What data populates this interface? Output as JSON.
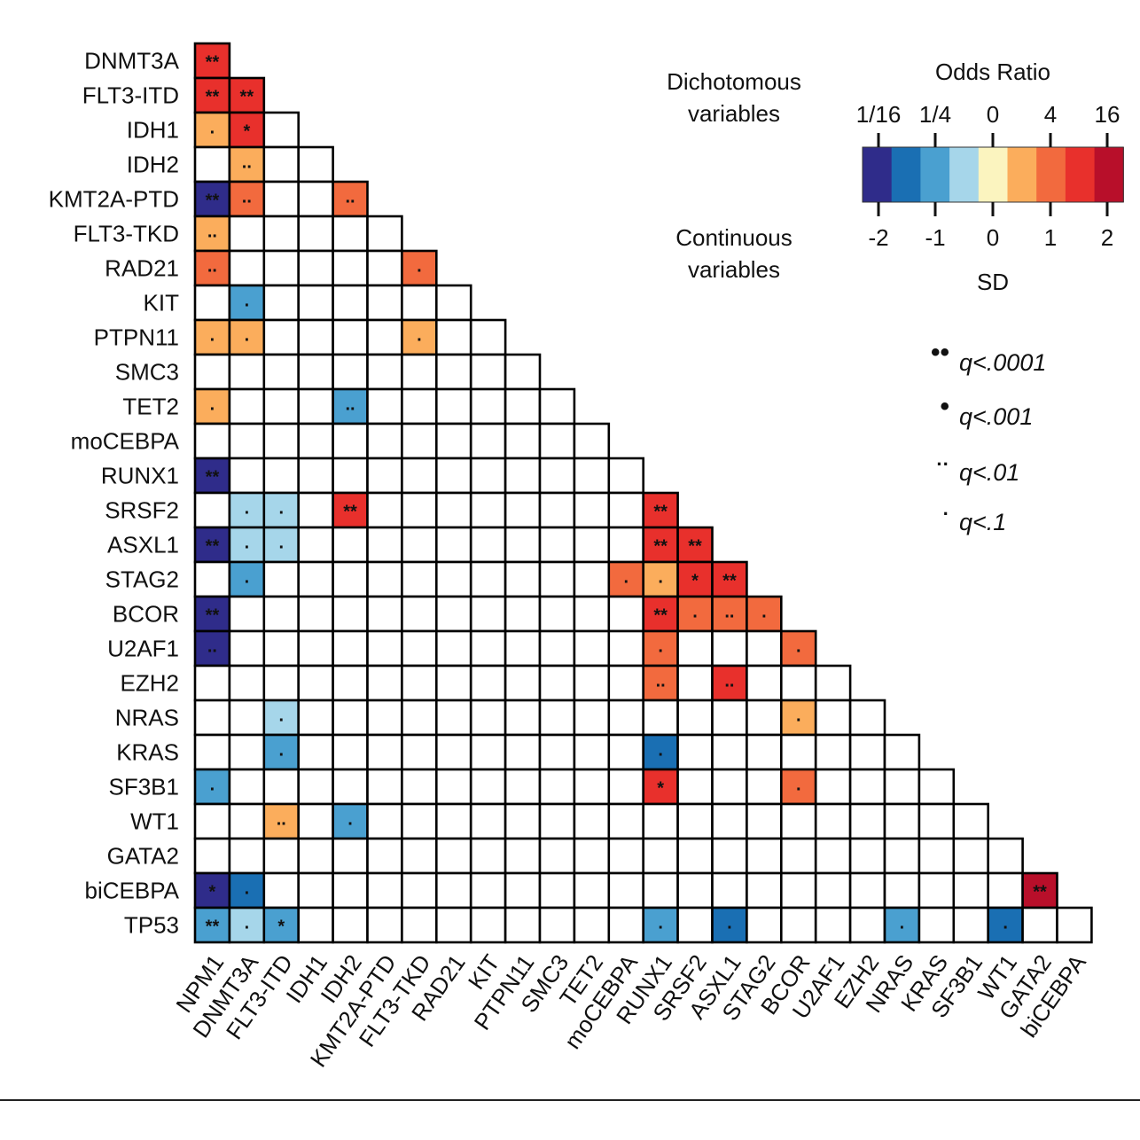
{
  "chart_data": {
    "type": "heatmap",
    "title": "",
    "genes": [
      "NPM1",
      "DNMT3A",
      "FLT3-ITD",
      "IDH1",
      "IDH2",
      "KMT2A-PTD",
      "FLT3-TKD",
      "RAD21",
      "KIT",
      "PTPN11",
      "SMC3",
      "TET2",
      "moCEBPA",
      "RUNX1",
      "SRSF2",
      "ASXL1",
      "STAG2",
      "BCOR",
      "U2AF1",
      "EZH2",
      "NRAS",
      "KRAS",
      "SF3B1",
      "WT1",
      "GATA2",
      "biCEBPA",
      "TP53"
    ],
    "row_labels": [
      "DNMT3A",
      "FLT3-ITD",
      "IDH1",
      "IDH2",
      "KMT2A-PTD",
      "FLT3-TKD",
      "RAD21",
      "KIT",
      "PTPN11",
      "SMC3",
      "TET2",
      "moCEBPA",
      "RUNX1",
      "SRSF2",
      "ASXL1",
      "STAG2",
      "BCOR",
      "U2AF1",
      "EZH2",
      "NRAS",
      "KRAS",
      "SF3B1",
      "WT1",
      "GATA2",
      "biCEBPA",
      "TP53"
    ],
    "col_labels": [
      "NPM1",
      "DNMT3A",
      "FLT3-ITD",
      "IDH1",
      "IDH2",
      "KMT2A-PTD",
      "FLT3-TKD",
      "RAD21",
      "KIT",
      "PTPN11",
      "SMC3",
      "TET2",
      "moCEBPA",
      "RUNX1",
      "SRSF2",
      "ASXL1",
      "STAG2",
      "BCOR",
      "U2AF1",
      "EZH2",
      "NRAS",
      "KRAS",
      "SF3B1",
      "WT1",
      "GATA2",
      "biCEBPA"
    ],
    "cells": [
      {
        "row": "DNMT3A",
        "col": "NPM1",
        "level": 3,
        "sig": "**"
      },
      {
        "row": "FLT3-ITD",
        "col": "NPM1",
        "level": 3,
        "sig": "**"
      },
      {
        "row": "FLT3-ITD",
        "col": "DNMT3A",
        "level": 3,
        "sig": "**"
      },
      {
        "row": "IDH1",
        "col": "NPM1",
        "level": 1,
        "sig": "."
      },
      {
        "row": "IDH1",
        "col": "DNMT3A",
        "level": 3,
        "sig": "*"
      },
      {
        "row": "IDH2",
        "col": "DNMT3A",
        "level": 1,
        "sig": ".."
      },
      {
        "row": "KMT2A-PTD",
        "col": "NPM1",
        "level": -4,
        "sig": "**"
      },
      {
        "row": "KMT2A-PTD",
        "col": "DNMT3A",
        "level": 2,
        "sig": ".."
      },
      {
        "row": "KMT2A-PTD",
        "col": "IDH2",
        "level": 2,
        "sig": ".."
      },
      {
        "row": "FLT3-TKD",
        "col": "NPM1",
        "level": 1,
        "sig": ".."
      },
      {
        "row": "RAD21",
        "col": "NPM1",
        "level": 2,
        "sig": ".."
      },
      {
        "row": "RAD21",
        "col": "FLT3-TKD",
        "level": 2,
        "sig": "."
      },
      {
        "row": "KIT",
        "col": "DNMT3A",
        "level": -2,
        "sig": "."
      },
      {
        "row": "PTPN11",
        "col": "NPM1",
        "level": 1,
        "sig": "."
      },
      {
        "row": "PTPN11",
        "col": "DNMT3A",
        "level": 1,
        "sig": "."
      },
      {
        "row": "PTPN11",
        "col": "FLT3-TKD",
        "level": 1,
        "sig": "."
      },
      {
        "row": "TET2",
        "col": "NPM1",
        "level": 1,
        "sig": "."
      },
      {
        "row": "TET2",
        "col": "IDH2",
        "level": -2,
        "sig": ".."
      },
      {
        "row": "RUNX1",
        "col": "NPM1",
        "level": -4,
        "sig": "**"
      },
      {
        "row": "SRSF2",
        "col": "DNMT3A",
        "level": -1,
        "sig": "."
      },
      {
        "row": "SRSF2",
        "col": "FLT3-ITD",
        "level": -1,
        "sig": "."
      },
      {
        "row": "SRSF2",
        "col": "IDH2",
        "level": 3,
        "sig": "**"
      },
      {
        "row": "SRSF2",
        "col": "RUNX1",
        "level": 3,
        "sig": "**"
      },
      {
        "row": "ASXL1",
        "col": "NPM1",
        "level": -4,
        "sig": "**"
      },
      {
        "row": "ASXL1",
        "col": "DNMT3A",
        "level": -1,
        "sig": "."
      },
      {
        "row": "ASXL1",
        "col": "FLT3-ITD",
        "level": -1,
        "sig": "."
      },
      {
        "row": "ASXL1",
        "col": "RUNX1",
        "level": 3,
        "sig": "**"
      },
      {
        "row": "ASXL1",
        "col": "SRSF2",
        "level": 3,
        "sig": "**"
      },
      {
        "row": "STAG2",
        "col": "DNMT3A",
        "level": -2,
        "sig": "."
      },
      {
        "row": "STAG2",
        "col": "moCEBPA",
        "level": 2,
        "sig": "."
      },
      {
        "row": "STAG2",
        "col": "RUNX1",
        "level": 1,
        "sig": "."
      },
      {
        "row": "STAG2",
        "col": "SRSF2",
        "level": 3,
        "sig": "*"
      },
      {
        "row": "STAG2",
        "col": "ASXL1",
        "level": 3,
        "sig": "**"
      },
      {
        "row": "BCOR",
        "col": "NPM1",
        "level": -4,
        "sig": "**"
      },
      {
        "row": "BCOR",
        "col": "RUNX1",
        "level": 3,
        "sig": "**"
      },
      {
        "row": "BCOR",
        "col": "SRSF2",
        "level": 2,
        "sig": "."
      },
      {
        "row": "BCOR",
        "col": "ASXL1",
        "level": 2,
        "sig": ".."
      },
      {
        "row": "BCOR",
        "col": "STAG2",
        "level": 2,
        "sig": "."
      },
      {
        "row": "U2AF1",
        "col": "NPM1",
        "level": -4,
        "sig": ".."
      },
      {
        "row": "U2AF1",
        "col": "RUNX1",
        "level": 2,
        "sig": "."
      },
      {
        "row": "U2AF1",
        "col": "BCOR",
        "level": 2,
        "sig": "."
      },
      {
        "row": "EZH2",
        "col": "RUNX1",
        "level": 2,
        "sig": ".."
      },
      {
        "row": "EZH2",
        "col": "ASXL1",
        "level": 3,
        "sig": ".."
      },
      {
        "row": "NRAS",
        "col": "FLT3-ITD",
        "level": -1,
        "sig": "."
      },
      {
        "row": "NRAS",
        "col": "BCOR",
        "level": 1,
        "sig": "."
      },
      {
        "row": "KRAS",
        "col": "FLT3-ITD",
        "level": -2,
        "sig": "."
      },
      {
        "row": "KRAS",
        "col": "RUNX1",
        "level": -3,
        "sig": "."
      },
      {
        "row": "SF3B1",
        "col": "NPM1",
        "level": -2,
        "sig": "."
      },
      {
        "row": "SF3B1",
        "col": "RUNX1",
        "level": 3,
        "sig": "*"
      },
      {
        "row": "SF3B1",
        "col": "BCOR",
        "level": 2,
        "sig": "."
      },
      {
        "row": "WT1",
        "col": "FLT3-ITD",
        "level": 1,
        "sig": ".."
      },
      {
        "row": "WT1",
        "col": "IDH2",
        "level": -2,
        "sig": "."
      },
      {
        "row": "biCEBPA",
        "col": "NPM1",
        "level": -4,
        "sig": "*"
      },
      {
        "row": "biCEBPA",
        "col": "DNMT3A",
        "level": -3,
        "sig": "."
      },
      {
        "row": "biCEBPA",
        "col": "GATA2",
        "level": 4,
        "sig": "**"
      },
      {
        "row": "TP53",
        "col": "NPM1",
        "level": -2,
        "sig": "**"
      },
      {
        "row": "TP53",
        "col": "DNMT3A",
        "level": -1,
        "sig": "."
      },
      {
        "row": "TP53",
        "col": "FLT3-ITD",
        "level": -2,
        "sig": "*"
      },
      {
        "row": "TP53",
        "col": "RUNX1",
        "level": -2,
        "sig": "."
      },
      {
        "row": "TP53",
        "col": "ASXL1",
        "level": -3,
        "sig": "."
      },
      {
        "row": "TP53",
        "col": "NRAS",
        "level": -2,
        "sig": "."
      },
      {
        "row": "TP53",
        "col": "WT1",
        "level": -3,
        "sig": "."
      }
    ],
    "legend": {
      "dichotomous_label_line1": "Dichotomous",
      "dichotomous_label_line2": "variables",
      "continuous_label_line1": "Continuous",
      "continuous_label_line2": "variables",
      "odds_title": "Odds Ratio",
      "odds_ticks": [
        "1/16",
        "1/4",
        "0",
        "4",
        "16"
      ],
      "sd_title": "SD",
      "sd_ticks": [
        "-2",
        "-1",
        "0",
        "1",
        "2"
      ],
      "levels": [
        -4,
        -3,
        -2,
        -1,
        0,
        1,
        2,
        3,
        4
      ],
      "colors": {
        "-4": "#2f2c8a",
        "-3": "#1a6fb3",
        "-2": "#4aa0d0",
        "-1": "#a6d6ea",
        "0": "#fbf4bf",
        "1": "#fbad5c",
        "2": "#f26a3e",
        "3": "#e8302c",
        "4": "#b80f2a"
      },
      "significance": [
        {
          "symbol": "••",
          "text": "q<.0001"
        },
        {
          "symbol": "•",
          "text": "q<.001"
        },
        {
          "symbol": "··",
          "text": "q<.01"
        },
        {
          "symbol": "·",
          "text": "q<.1"
        }
      ]
    }
  }
}
